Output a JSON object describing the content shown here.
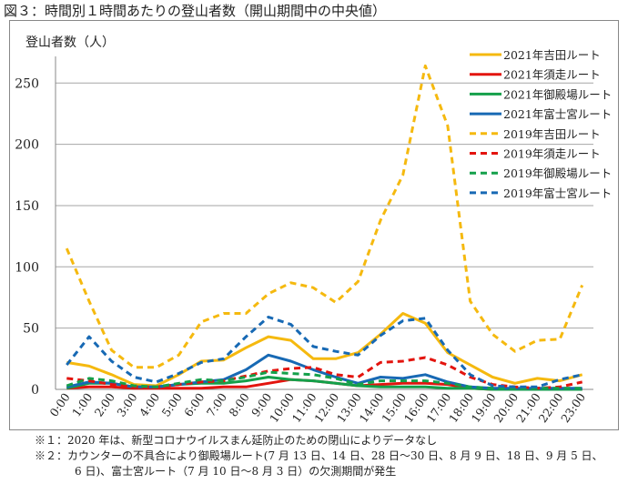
{
  "title": "図３：時間別１時間あたりの登山者数（開山期間中の中央値）",
  "notes": [
    "※１：2020 年は、新型コロナウイルスまん延防止のための閉山によりデータなし",
    "※２：カウンターの不具合により御殿場ルート(7 月 13 日、14 日、28 日～30 日、8 月 9 日、18 日、9 月 5 日、",
    "6 日)、富士宮ルート（7 月 10 日～8 月 3 日）の欠測期間が発生"
  ],
  "chart_data": {
    "type": "line",
    "ylabel": "登山者数（人）",
    "ylim": [
      0,
      250
    ],
    "yticks": [
      0,
      50,
      100,
      150,
      200,
      250
    ],
    "grid": true,
    "legend": "top-right",
    "categories": [
      "0:00",
      "1:00",
      "2:00",
      "3:00",
      "4:00",
      "5:00",
      "6:00",
      "7:00",
      "8:00",
      "9:00",
      "10:00",
      "11:00",
      "12:00",
      "13:00",
      "14:00",
      "15:00",
      "16:00",
      "17:00",
      "18:00",
      "19:00",
      "20:00",
      "21:00",
      "22:00",
      "23:00"
    ],
    "series": [
      {
        "name": "2021年吉田ルート",
        "color": "#F5B90F",
        "dash": false,
        "values": [
          22,
          19,
          12,
          4,
          3,
          12,
          23,
          24,
          34,
          43,
          40,
          25,
          25,
          30,
          45,
          62,
          54,
          30,
          20,
          10,
          5,
          9,
          7,
          12
        ]
      },
      {
        "name": "2021年須走ルート",
        "color": "#E3140E",
        "dash": false,
        "values": [
          1,
          2,
          2,
          1,
          1,
          1,
          1,
          2,
          2,
          5,
          8,
          7,
          5,
          3,
          4,
          5,
          5,
          4,
          1,
          0,
          0,
          0,
          0,
          0
        ]
      },
      {
        "name": "2021年御殿場ルート",
        "color": "#14A04A",
        "dash": false,
        "values": [
          1,
          5,
          5,
          2,
          2,
          4,
          5,
          5,
          7,
          10,
          8,
          7,
          5,
          3,
          2,
          2,
          2,
          1,
          1,
          0,
          0,
          0,
          0,
          0
        ]
      },
      {
        "name": "2021年富士宮ルート",
        "color": "#1769B4",
        "dash": false,
        "values": [
          2,
          6,
          5,
          2,
          2,
          4,
          6,
          8,
          16,
          28,
          23,
          16,
          10,
          5,
          10,
          9,
          12,
          6,
          2,
          1,
          1,
          1,
          1,
          1
        ]
      },
      {
        "name": "2019年吉田ルート",
        "color": "#F5B90F",
        "dash": true,
        "values": [
          115,
          72,
          32,
          18,
          18,
          28,
          55,
          62,
          62,
          78,
          87,
          83,
          71,
          88,
          138,
          175,
          264,
          215,
          72,
          45,
          31,
          40,
          41,
          85
        ]
      },
      {
        "name": "2019年須走ルート",
        "color": "#E3140E",
        "dash": true,
        "values": [
          9,
          7,
          4,
          2,
          2,
          4,
          6,
          7,
          11,
          15,
          17,
          18,
          12,
          10,
          22,
          23,
          26,
          20,
          10,
          4,
          2,
          1,
          2,
          6
        ]
      },
      {
        "name": "2019年御殿場ルート",
        "color": "#14A04A",
        "dash": true,
        "values": [
          3,
          9,
          7,
          3,
          2,
          5,
          8,
          7,
          10,
          14,
          13,
          12,
          9,
          4,
          7,
          7,
          7,
          5,
          2,
          1,
          1,
          1,
          1,
          1
        ]
      },
      {
        "name": "2019年富士宮ルート",
        "color": "#1769B4",
        "dash": true,
        "values": [
          20,
          43,
          23,
          10,
          6,
          13,
          22,
          25,
          43,
          59,
          53,
          35,
          31,
          28,
          44,
          56,
          58,
          32,
          12,
          3,
          2,
          2,
          8,
          12
        ]
      }
    ]
  }
}
